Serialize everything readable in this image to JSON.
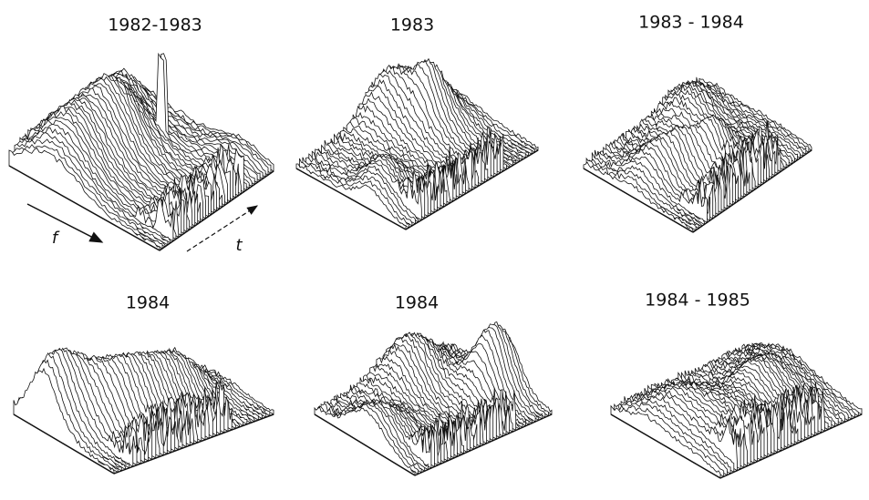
{
  "panels": [
    {
      "title": "1982-1983"
    },
    {
      "title": "1983"
    },
    {
      "title": "1983 - 1984"
    },
    {
      "title": "1984"
    },
    {
      "title": "1984"
    },
    {
      "title": "1984 - 1985"
    }
  ],
  "axis_labels": {
    "f": "f",
    "t": "t"
  }
}
